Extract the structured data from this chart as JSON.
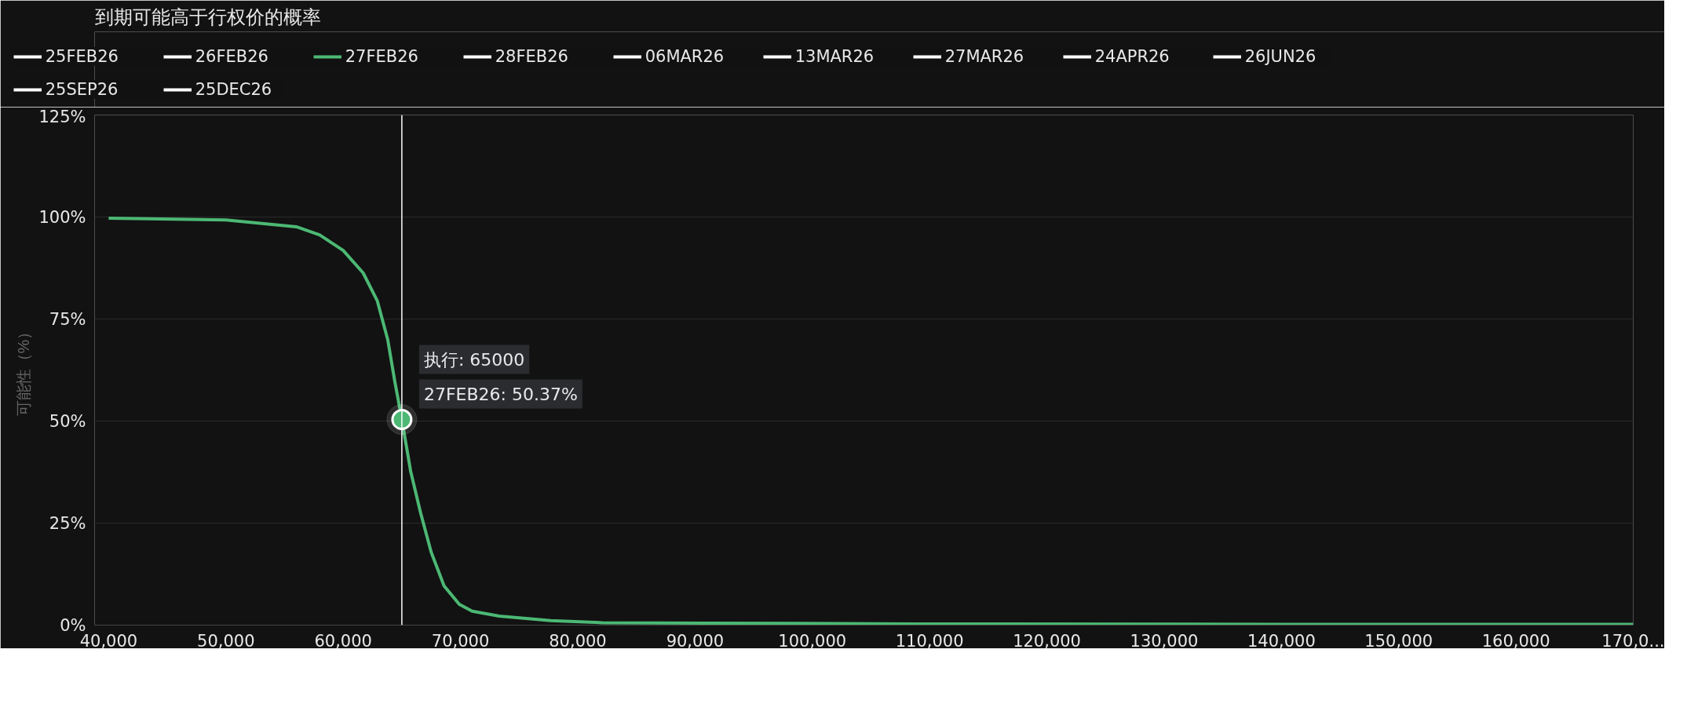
{
  "chart_data": {
    "type": "line",
    "title": "到期可能高于行权价的概率",
    "ylabel": "可能性（%）",
    "x": [
      40000,
      50000,
      56000,
      58000,
      60000,
      61700,
      62900,
      63800,
      64400,
      65000,
      65750,
      66600,
      67500,
      68600,
      69900,
      71000,
      73300,
      77700,
      82100,
      91000,
      108700,
      140000,
      170000
    ],
    "series": [
      {
        "name": "25FEB26",
        "color": "#ffffff",
        "values": [
          null,
          null,
          null,
          null,
          null,
          null,
          null,
          null,
          null,
          null,
          null,
          null,
          null,
          null,
          null,
          null,
          null,
          null,
          null,
          null,
          null,
          null,
          null
        ]
      },
      {
        "name": "26FEB26",
        "color": "#ffffff",
        "values": [
          null,
          null,
          null,
          null,
          null,
          null,
          null,
          null,
          null,
          null,
          null,
          null,
          null,
          null,
          null,
          null,
          null,
          null,
          null,
          null,
          null,
          null,
          null
        ]
      },
      {
        "name": "27FEB26",
        "color": "#4cb874",
        "values": [
          99.7,
          99.3,
          97.6,
          95.6,
          91.8,
          86.3,
          79.5,
          69.9,
          59.7,
          50.37,
          37.7,
          27.5,
          17.9,
          9.6,
          5.1,
          3.4,
          2.2,
          1.1,
          0.6,
          0.5,
          0.3,
          0.2,
          0.2
        ]
      },
      {
        "name": "28FEB26",
        "color": "#ffffff",
        "values": [
          null,
          null,
          null,
          null,
          null,
          null,
          null,
          null,
          null,
          null,
          null,
          null,
          null,
          null,
          null,
          null,
          null,
          null,
          null,
          null,
          null,
          null,
          null
        ]
      },
      {
        "name": "06MAR26",
        "color": "#ffffff",
        "values": [
          null,
          null,
          null,
          null,
          null,
          null,
          null,
          null,
          null,
          null,
          null,
          null,
          null,
          null,
          null,
          null,
          null,
          null,
          null,
          null,
          null,
          null,
          null
        ]
      },
      {
        "name": "13MAR26",
        "color": "#ffffff",
        "values": [
          null,
          null,
          null,
          null,
          null,
          null,
          null,
          null,
          null,
          null,
          null,
          null,
          null,
          null,
          null,
          null,
          null,
          null,
          null,
          null,
          null,
          null,
          null
        ]
      },
      {
        "name": "27MAR26",
        "color": "#ffffff",
        "values": [
          null,
          null,
          null,
          null,
          null,
          null,
          null,
          null,
          null,
          null,
          null,
          null,
          null,
          null,
          null,
          null,
          null,
          null,
          null,
          null,
          null,
          null,
          null
        ]
      },
      {
        "name": "24APR26",
        "color": "#ffffff",
        "values": [
          null,
          null,
          null,
          null,
          null,
          null,
          null,
          null,
          null,
          null,
          null,
          null,
          null,
          null,
          null,
          null,
          null,
          null,
          null,
          null,
          null,
          null,
          null
        ]
      },
      {
        "name": "26JUN26",
        "color": "#ffffff",
        "values": [
          null,
          null,
          null,
          null,
          null,
          null,
          null,
          null,
          null,
          null,
          null,
          null,
          null,
          null,
          null,
          null,
          null,
          null,
          null,
          null,
          null,
          null,
          null
        ]
      },
      {
        "name": "25SEP26",
        "color": "#ffffff",
        "values": [
          null,
          null,
          null,
          null,
          null,
          null,
          null,
          null,
          null,
          null,
          null,
          null,
          null,
          null,
          null,
          null,
          null,
          null,
          null,
          null,
          null,
          null,
          null
        ]
      },
      {
        "name": "25DEC26",
        "color": "#ffffff",
        "values": [
          null,
          null,
          null,
          null,
          null,
          null,
          null,
          null,
          null,
          null,
          null,
          null,
          null,
          null,
          null,
          null,
          null,
          null,
          null,
          null,
          null,
          null,
          null
        ]
      }
    ],
    "xlim": [
      38800,
      170000
    ],
    "xticks": [
      {
        "value": 40000,
        "label": "40,000"
      },
      {
        "value": 50000,
        "label": "50,000"
      },
      {
        "value": 60000,
        "label": "60,000"
      },
      {
        "value": 70000,
        "label": "70,000"
      },
      {
        "value": 80000,
        "label": "80,000"
      },
      {
        "value": 90000,
        "label": "90,000"
      },
      {
        "value": 100000,
        "label": "100,000"
      },
      {
        "value": 110000,
        "label": "110,000"
      },
      {
        "value": 120000,
        "label": "120,000"
      },
      {
        "value": 130000,
        "label": "130,000"
      },
      {
        "value": 140000,
        "label": "140,000"
      },
      {
        "value": 150000,
        "label": "150,000"
      },
      {
        "value": 160000,
        "label": "160,000"
      },
      {
        "value": 170000,
        "label": "170,0..."
      }
    ],
    "ylim": [
      0,
      125
    ],
    "yticks": [
      {
        "value": 0,
        "label": "0%"
      },
      {
        "value": 25,
        "label": "25%"
      },
      {
        "value": 50,
        "label": "50%"
      },
      {
        "value": 75,
        "label": "75%"
      },
      {
        "value": 100,
        "label": "100%"
      },
      {
        "value": 125,
        "label": "125%"
      }
    ],
    "grid": "y",
    "legend": "top left",
    "marker": "none",
    "line_style": "solid",
    "ref_lines": [
      {
        "axis": "x",
        "value": 65000,
        "color": "#ffffff"
      }
    ],
    "annotations": [
      "执行: 65000",
      {
        "text": "27FEB26: 50.37%",
        "x": 65000,
        "y": 50.37
      }
    ]
  }
}
